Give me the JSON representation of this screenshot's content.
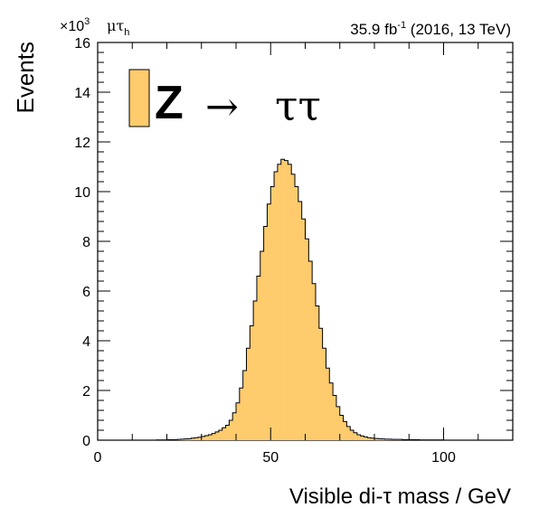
{
  "header": {
    "scale": "×10",
    "scale_exp": "3",
    "channel": "μτ",
    "channel_sub": "h",
    "lumi": "35.9 fb",
    "lumi_exp": "-1",
    "lumi_rest": " (2016, 13 TeV)"
  },
  "legend": {
    "boson": "Z",
    "arrow": "→",
    "decay": "ττ",
    "color": "#FECB6D"
  },
  "chart_data": {
    "type": "bar",
    "subtype": "histogram",
    "xlabel": "Visible di-τ mass / GeV",
    "ylabel": "Events",
    "xlim": [
      0,
      120
    ],
    "ylim": [
      0,
      16
    ],
    "y_multiplier": 1000,
    "x_ticks": [
      0,
      50,
      100
    ],
    "y_ticks": [
      0,
      2,
      4,
      6,
      8,
      10,
      12,
      14,
      16
    ],
    "bin_width": 1,
    "x_start": 17,
    "values": [
      0.01,
      0.01,
      0.01,
      0.02,
      0.02,
      0.02,
      0.03,
      0.04,
      0.05,
      0.06,
      0.08,
      0.1,
      0.12,
      0.15,
      0.18,
      0.22,
      0.27,
      0.33,
      0.4,
      0.5,
      0.6,
      0.8,
      1.1,
      1.5,
      2.1,
      2.8,
      3.7,
      4.6,
      5.6,
      6.6,
      7.6,
      8.6,
      9.5,
      10.2,
      10.8,
      11.1,
      11.3,
      11.25,
      11.1,
      10.7,
      10.2,
      9.6,
      8.9,
      8.1,
      7.2,
      6.3,
      5.4,
      4.5,
      3.7,
      2.9,
      2.3,
      1.8,
      1.35,
      1.0,
      0.75,
      0.55,
      0.4,
      0.3,
      0.22,
      0.17,
      0.13,
      0.1,
      0.08,
      0.07,
      0.06,
      0.05,
      0.04,
      0.04,
      0.03,
      0.03,
      0.03,
      0.02,
      0.02,
      0.02,
      0.02,
      0.02,
      0.01,
      0.01,
      0.01,
      0.01,
      0.01,
      0.01,
      0.01
    ],
    "fill_color": "#FECB6D",
    "line_color": "#000000"
  }
}
